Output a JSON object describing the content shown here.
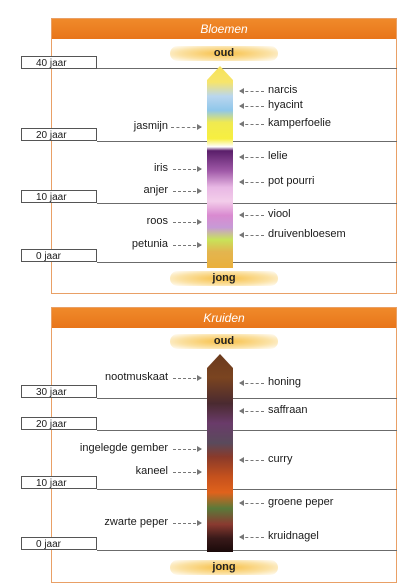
{
  "panels": [
    {
      "title": "Bloemen",
      "top_label": "oud",
      "bottom_label": "jong",
      "ages": [
        "40 jaar",
        "20 jaar",
        "10 jaar",
        "0 jaar"
      ],
      "left_labels": [
        "jasmijn",
        "iris",
        "anjer",
        "roos",
        "petunia"
      ],
      "right_labels": [
        "narcis",
        "hyacint",
        "kamperfoelie",
        "lelie",
        "pot pourri",
        "viool",
        "druivenbloesem"
      ]
    },
    {
      "title": "Kruiden",
      "top_label": "oud",
      "bottom_label": "jong",
      "ages": [
        "30 jaar",
        "20 jaar",
        "10 jaar",
        "0 jaar"
      ],
      "left_labels": [
        "nootmuskaat",
        "ingelegde gember",
        "kaneel",
        "zwarte peper"
      ],
      "right_labels": [
        "honing",
        "saffraan",
        "curry",
        "groene peper",
        "kruidnagel"
      ]
    }
  ]
}
